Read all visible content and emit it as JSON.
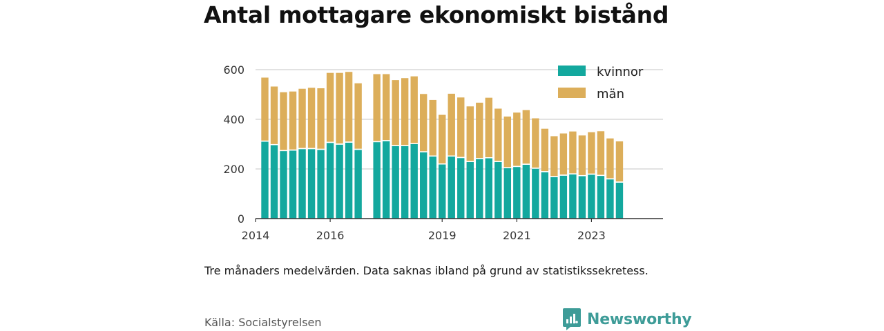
{
  "title": "Antal mottagare ekonomiskt bistånd",
  "note": "Tre månaders medelvärden. Data saknas ibland på grund av statistikssekretess.",
  "source": "Källa: Socialstyrelsen",
  "brand": "Newsworthy",
  "colors": {
    "kvinnor": "#13a89e",
    "man": "#dcae5a",
    "grid": "#d9d9d9",
    "axis": "#333333",
    "brand": "#3e9c98"
  },
  "chart_data": {
    "type": "bar",
    "stacked": true,
    "title": "Antal mottagare ekonomiskt bistånd",
    "xlabel": "",
    "ylabel": "",
    "ylim": [
      0,
      600
    ],
    "yticks": [
      0,
      200,
      400,
      600
    ],
    "xticks": [
      "2014",
      "2016",
      "2019",
      "2021",
      "2023"
    ],
    "xrange": [
      "2014-01",
      "2024-12"
    ],
    "grid": true,
    "legend_position": "top-right",
    "x": [
      "2014-04",
      "2014-07",
      "2014-10",
      "2015-01",
      "2015-04",
      "2015-07",
      "2015-10",
      "2016-01",
      "2016-04",
      "2016-07",
      "2016-10",
      "2017-01",
      "2017-04",
      "2017-07",
      "2017-10",
      "2018-01",
      "2018-04",
      "2018-07",
      "2018-10",
      "2019-01",
      "2019-04",
      "2019-07",
      "2019-10",
      "2020-01",
      "2020-04",
      "2020-07",
      "2020-10",
      "2021-01",
      "2021-04",
      "2021-07",
      "2021-10",
      "2022-01",
      "2022-04",
      "2022-07",
      "2022-10",
      "2023-01",
      "2023-04",
      "2023-07",
      "2023-10",
      "2024-01"
    ],
    "series": [
      {
        "name": "kvinnor",
        "values": [
          310,
          296,
          272,
          274,
          280,
          280,
          277,
          305,
          298,
          306,
          277,
          null,
          308,
          312,
          292,
          292,
          300,
          267,
          250,
          218,
          250,
          244,
          228,
          240,
          243,
          228,
          203,
          208,
          217,
          201,
          187,
          167,
          173,
          178,
          171,
          177,
          172,
          158,
          145,
          null
        ]
      },
      {
        "name": "män",
        "values": [
          258,
          236,
          237,
          238,
          243,
          247,
          248,
          282,
          289,
          285,
          268,
          null,
          274,
          270,
          266,
          274,
          273,
          235,
          228,
          200,
          253,
          244,
          224,
          227,
          244,
          215,
          208,
          219,
          220,
          203,
          175,
          165,
          170,
          173,
          164,
          171,
          180,
          165,
          166,
          null
        ]
      }
    ]
  }
}
